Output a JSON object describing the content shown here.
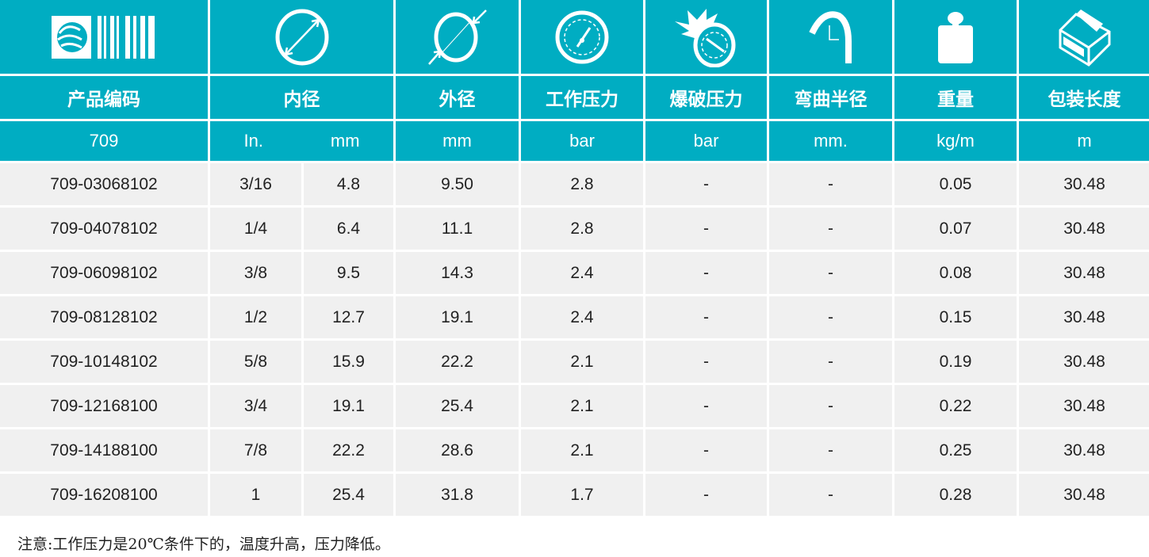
{
  "colors": {
    "header": "#00adc2",
    "row": "#f0f0f0"
  },
  "icons": [
    "logo-barcode",
    "inner-diameter-icon",
    "outer-diameter-icon",
    "pressure-gauge-icon",
    "burst-gauge-icon",
    "bend-radius-icon",
    "weight-icon",
    "package-box-icon"
  ],
  "headers": [
    "产品编码",
    "内径",
    "外径",
    "工作压力",
    "爆破压力",
    "弯曲半径",
    "重量",
    "包装长度"
  ],
  "units": {
    "code": "709",
    "id_in": "In.",
    "id_mm": "mm",
    "od": "mm",
    "wp": "bar",
    "bp": "bar",
    "br": "mm.",
    "weight": "kg/m",
    "length": "m"
  },
  "rows": [
    [
      "709-03068102",
      "3/16",
      "4.8",
      "9.50",
      "2.8",
      "-",
      "-",
      "0.05",
      "30.48"
    ],
    [
      "709-04078102",
      "1/4",
      "6.4",
      "11.1",
      "2.8",
      "-",
      "-",
      "0.07",
      "30.48"
    ],
    [
      "709-06098102",
      "3/8",
      "9.5",
      "14.3",
      "2.4",
      "-",
      "-",
      "0.08",
      "30.48"
    ],
    [
      "709-08128102",
      "1/2",
      "12.7",
      "19.1",
      "2.4",
      "-",
      "-",
      "0.15",
      "30.48"
    ],
    [
      "709-10148102",
      "5/8",
      "15.9",
      "22.2",
      "2.1",
      "-",
      "-",
      "0.19",
      "30.48"
    ],
    [
      "709-12168100",
      "3/4",
      "19.1",
      "25.4",
      "2.1",
      "-",
      "-",
      "0.22",
      "30.48"
    ],
    [
      "709-14188100",
      "7/8",
      "22.2",
      "28.6",
      "2.1",
      "-",
      "-",
      "0.25",
      "30.48"
    ],
    [
      "709-16208100",
      "1",
      "25.4",
      "31.8",
      "1.7",
      "-",
      "-",
      "0.28",
      "30.48"
    ]
  ],
  "note": "注意:工作压力是20℃条件下的，温度升高，压力降低。"
}
